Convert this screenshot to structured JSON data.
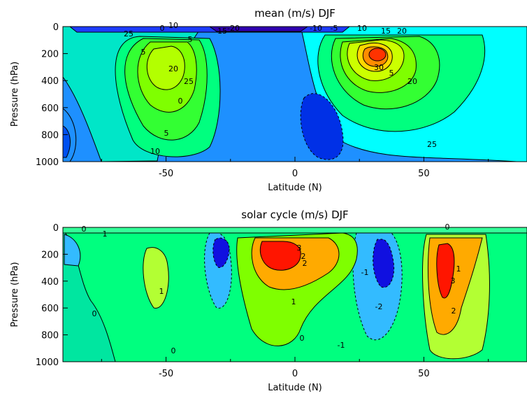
{
  "chart_data": [
    {
      "type": "heatmap",
      "title": "mean (m/s) DJF",
      "xlabel": "Latitude (N)",
      "ylabel": "Pressure (hPa)",
      "xlim": [
        -90,
        90
      ],
      "ylim": [
        1000,
        0
      ],
      "xticks": [
        "-50",
        "0",
        "50"
      ],
      "yticks": [
        "0",
        "200",
        "400",
        "600",
        "800",
        "1000"
      ],
      "contour_labels": [
        "-20",
        "-10",
        "-5",
        "0",
        "5",
        "10",
        "15",
        "20",
        "25",
        "30",
        "5",
        "10",
        "15",
        "20",
        "25",
        "0",
        "5",
        "10",
        "5",
        "20",
        "25"
      ],
      "features": [
        {
          "lat": -47,
          "p": 230,
          "value": 27
        },
        {
          "lat": 31,
          "p": 180,
          "value": 35
        },
        {
          "lat": 10,
          "p": 780,
          "value": -5
        },
        {
          "lat": -15,
          "p": 0,
          "value": -20
        }
      ]
    },
    {
      "type": "heatmap",
      "title": "solar cycle (m/s) DJF",
      "xlabel": "Latitude (N)",
      "ylabel": "Pressure (hPa)",
      "xlim": [
        -90,
        90
      ],
      "ylim": [
        1000,
        0
      ],
      "xticks": [
        "-50",
        "0",
        "50"
      ],
      "yticks": [
        "0",
        "200",
        "400",
        "600",
        "800",
        "1000"
      ],
      "contour_labels": [
        "0",
        "1",
        "0",
        "1",
        "2",
        "3",
        "2",
        "1",
        "0",
        "-1",
        "-2",
        "-1",
        "0",
        "1",
        "2",
        "3",
        "0"
      ],
      "features": [
        {
          "lat": -5,
          "p": 200,
          "value": 3.2
        },
        {
          "lat": 57,
          "p": 300,
          "value": 3.3
        },
        {
          "lat": -30,
          "p": 220,
          "value": -2.3
        },
        {
          "lat": 37,
          "p": 280,
          "value": -2.6
        }
      ]
    }
  ]
}
